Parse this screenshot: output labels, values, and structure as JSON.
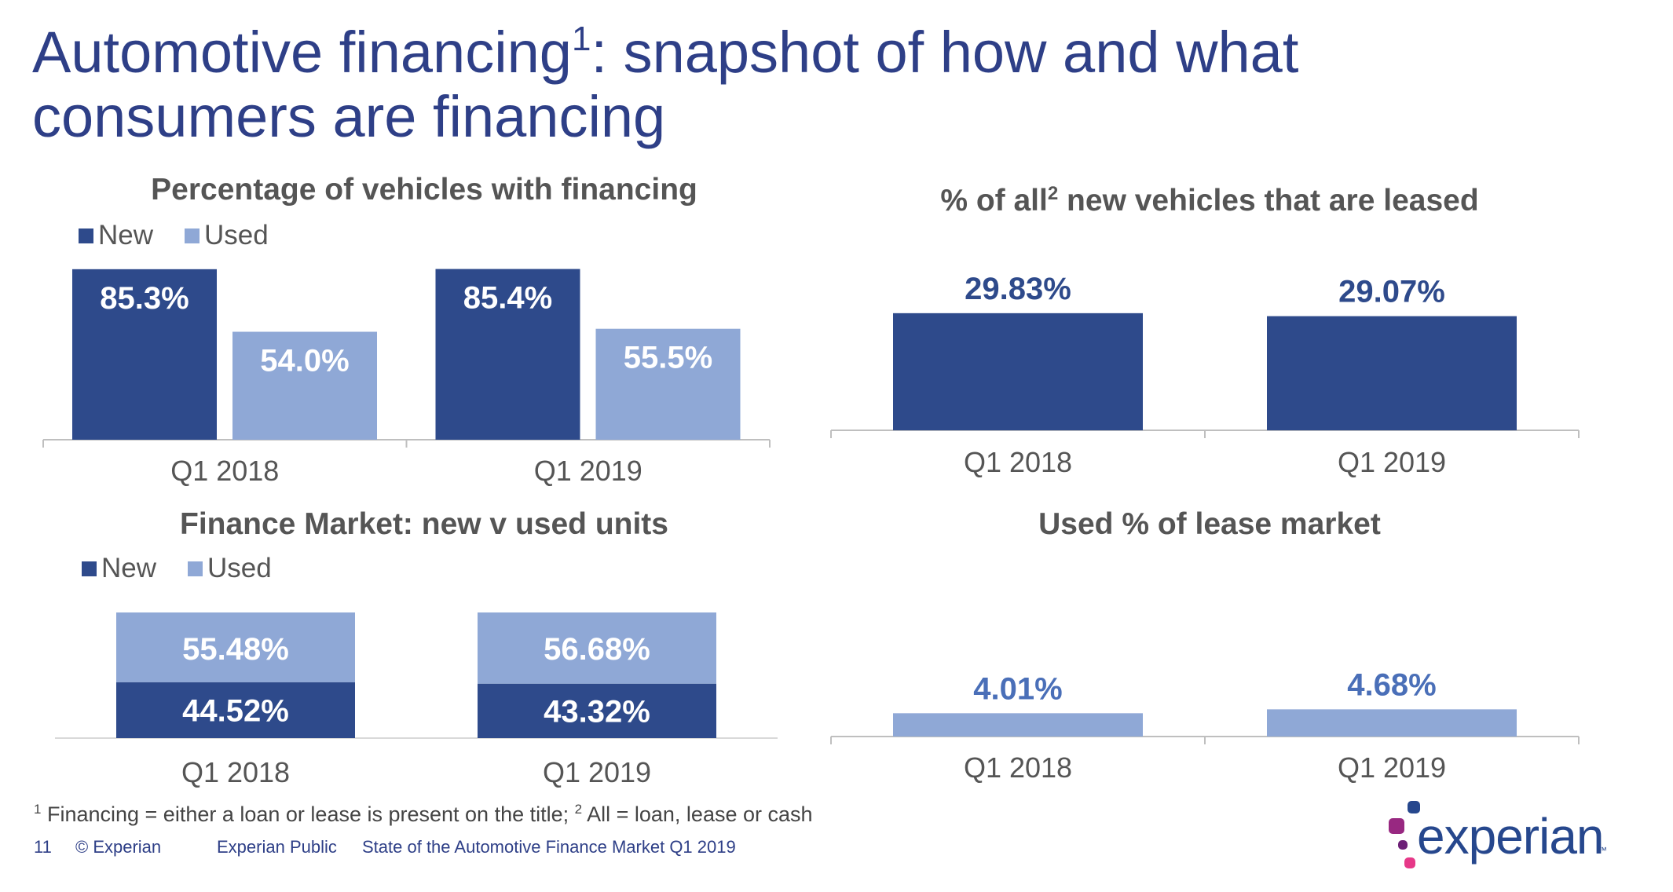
{
  "title": {
    "line1_pre": "Automotive financing",
    "line1_sup": "1",
    "line1_post": ": snapshot of how and what",
    "line2": "consumers are financing"
  },
  "legend": {
    "new": "New",
    "used": "Used"
  },
  "colors": {
    "new": "#2e4a8b",
    "used": "#8fa8d6",
    "title": "#2e3f87",
    "label_dark": "#2e4a8b",
    "label_light": "#4a6fb8"
  },
  "chart_data": [
    {
      "id": "financing",
      "type": "bar",
      "title": "Percentage of vehicles with financing",
      "categories": [
        "Q1 2018",
        "Q1 2019"
      ],
      "series": [
        {
          "name": "New",
          "values": [
            85.3,
            85.4
          ],
          "labels": [
            "85.3%",
            "85.4%"
          ]
        },
        {
          "name": "Used",
          "values": [
            54.0,
            55.5
          ],
          "labels": [
            "54.0%",
            "55.5%"
          ]
        }
      ],
      "ylim": [
        0,
        100
      ],
      "legend": "top-left",
      "grid": false
    },
    {
      "id": "leased",
      "type": "bar",
      "title_pre": "% of all",
      "title_sup": "2",
      "title_post": " new vehicles that are leased",
      "categories": [
        "Q1 2018",
        "Q1 2019"
      ],
      "series": [
        {
          "values": [
            29.83,
            29.07
          ],
          "labels": [
            "29.83%",
            "29.07%"
          ]
        }
      ],
      "ylim": [
        0,
        100
      ],
      "grid": false
    },
    {
      "id": "market",
      "type": "bar",
      "stacked": true,
      "title": "Finance Market: new v used units",
      "categories": [
        "Q1 2018",
        "Q1 2019"
      ],
      "series": [
        {
          "name": "New",
          "values": [
            44.52,
            43.32
          ],
          "labels": [
            "44.52%",
            "43.32%"
          ]
        },
        {
          "name": "Used",
          "values": [
            55.48,
            56.68
          ],
          "labels": [
            "55.48%",
            "56.68%"
          ]
        }
      ],
      "ylim": [
        0,
        100
      ],
      "legend": "top-left",
      "grid": false
    },
    {
      "id": "lease_used",
      "type": "bar",
      "title": "Used % of lease market",
      "categories": [
        "Q1 2018",
        "Q1 2019"
      ],
      "series": [
        {
          "values": [
            4.01,
            4.68
          ],
          "labels": [
            "4.01%",
            "4.68%"
          ]
        }
      ],
      "ylim": [
        0,
        100
      ],
      "grid": false
    }
  ],
  "footnote": {
    "sup1": "1",
    "text1": " Financing = either a loan or lease is present on the title; ",
    "sup2": "2",
    "text2": " All = loan, lease or cash"
  },
  "footer": {
    "page": "11",
    "copyright": "© Experian",
    "classification": "Experian Public",
    "doc_title": "State of the Automotive Finance Market Q1 2019"
  },
  "logo": {
    "word": "experian",
    "tm": "™",
    "dot_colors": [
      "#26478d",
      "#982881",
      "#e63888",
      "#6d2077"
    ]
  }
}
